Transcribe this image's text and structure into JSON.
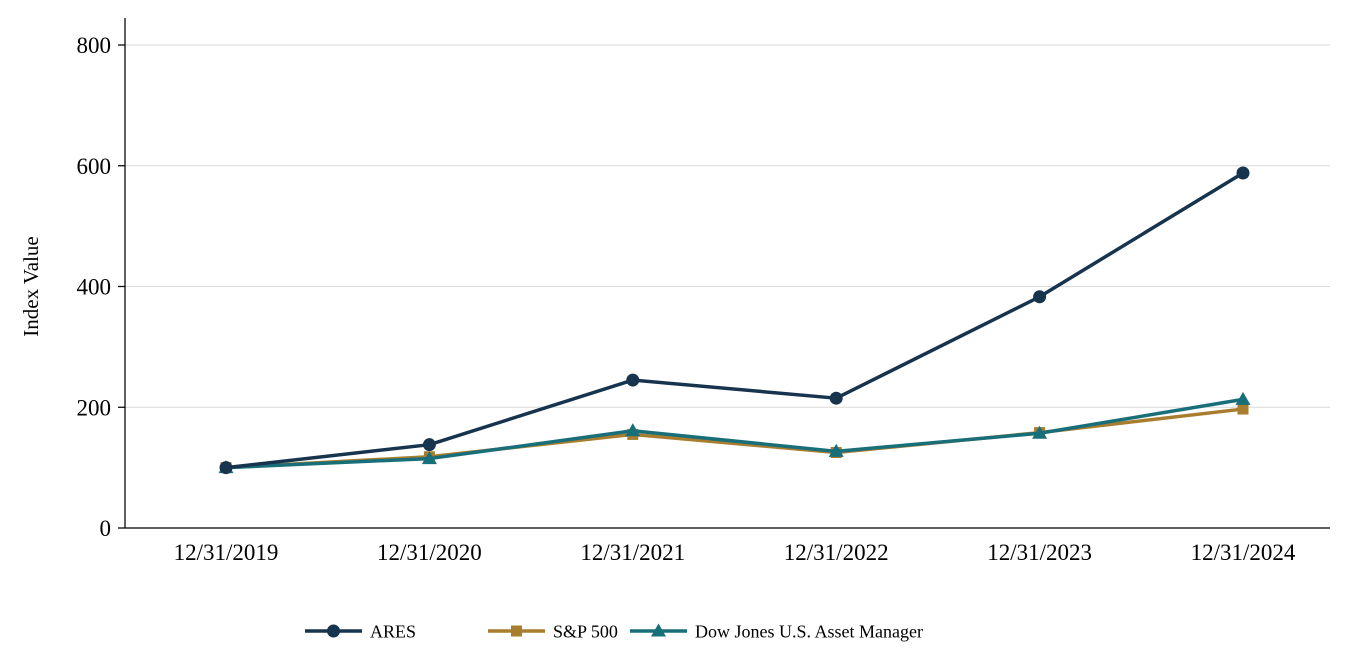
{
  "chart_data": {
    "type": "line",
    "title": "",
    "xlabel": "",
    "ylabel": "Index Value",
    "ylim": [
      0,
      800
    ],
    "yticks": [
      0,
      200,
      400,
      600,
      800
    ],
    "grid": "horizontal",
    "legend_position": "bottom",
    "categories": [
      "12/31/2019",
      "12/31/2020",
      "12/31/2021",
      "12/31/2022",
      "12/31/2023",
      "12/31/2024"
    ],
    "series": [
      {
        "name": "ARES",
        "marker": "circle",
        "color": "#17344f",
        "values": [
          100,
          138,
          245,
          215,
          383,
          588
        ]
      },
      {
        "name": "S&P 500",
        "marker": "square",
        "color": "#a97d2e",
        "values": [
          100,
          118,
          155,
          125,
          158,
          197
        ]
      },
      {
        "name": "Dow Jones U.S. Asset Manager",
        "marker": "triangle",
        "color": "#196f79",
        "values": [
          100,
          115,
          161,
          127,
          157,
          213
        ]
      }
    ],
    "colors": {
      "gridline": "#d9d9d9",
      "axis": "#000000"
    }
  }
}
